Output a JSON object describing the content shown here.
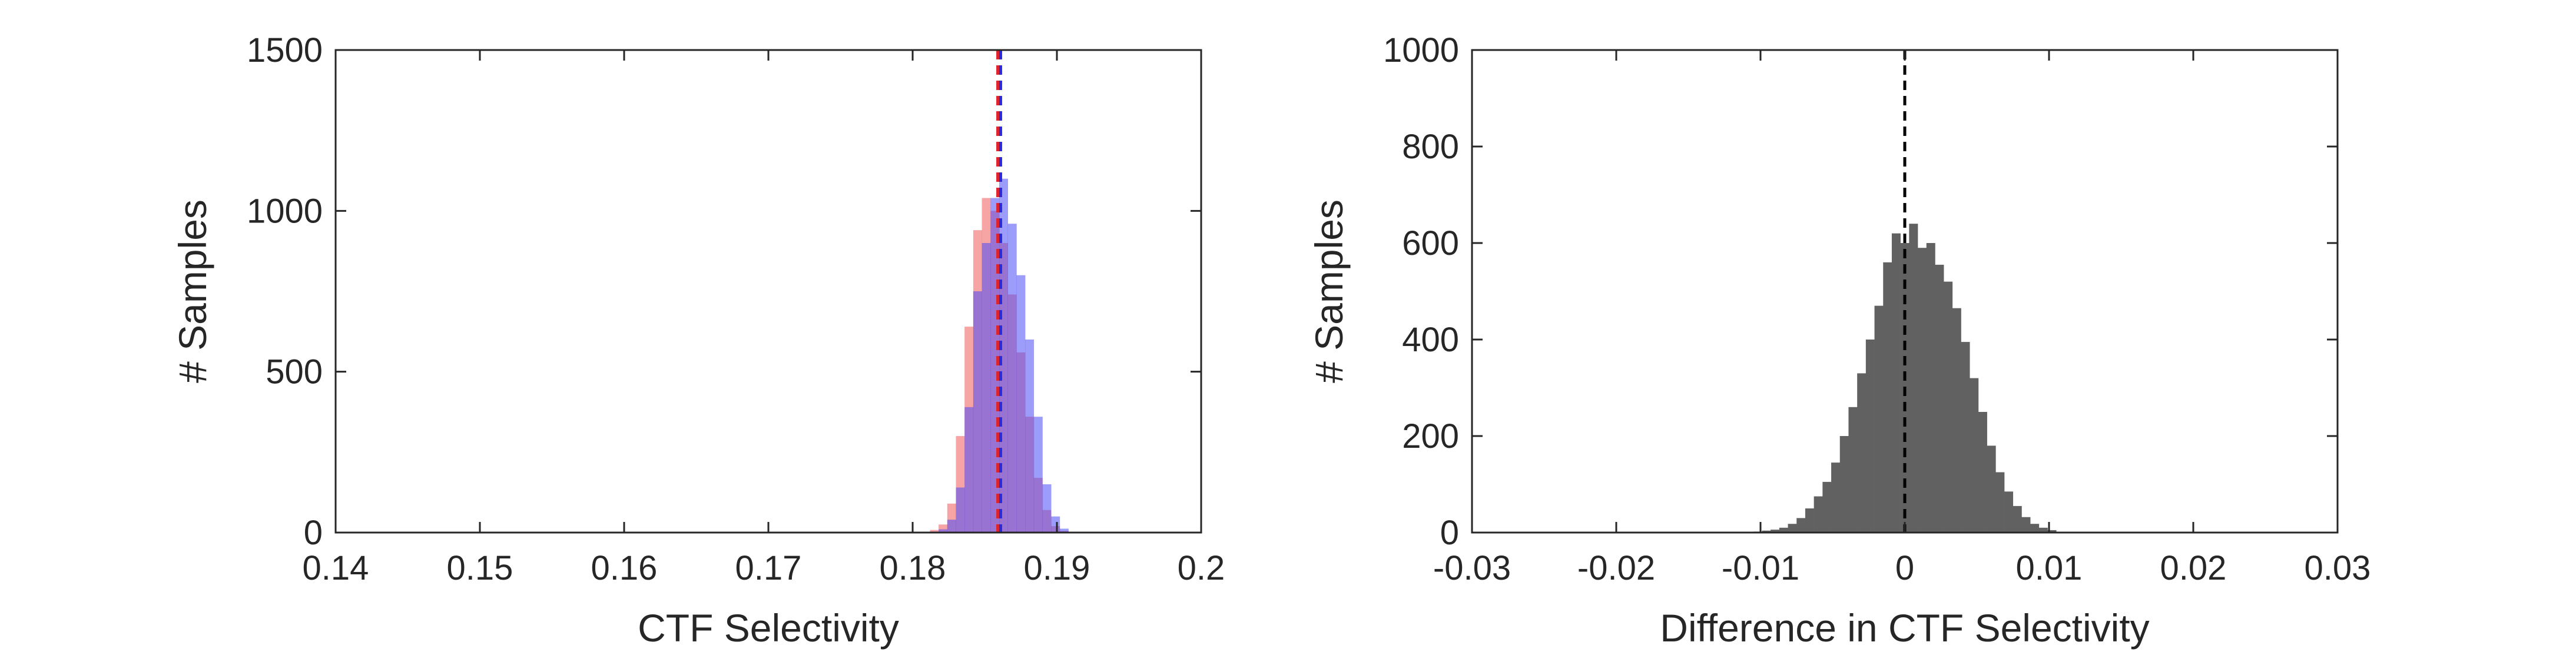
{
  "chart_data": [
    {
      "type": "histogram",
      "title": "",
      "xlabel": "CTF Selectivity",
      "ylabel": "# Samples",
      "xlim": [
        0.14,
        0.2
      ],
      "ylim": [
        0,
        1500
      ],
      "xticks": [
        "0.14",
        "0.15",
        "0.16",
        "0.17",
        "0.18",
        "0.19",
        "0.2"
      ],
      "yticks": [
        "0",
        "500",
        "1000",
        "1500"
      ],
      "grid": false,
      "bin_edges": [
        0.1812,
        0.1818,
        0.1824,
        0.183,
        0.1836,
        0.1842,
        0.1848,
        0.1854,
        0.186,
        0.1866,
        0.1872,
        0.1878,
        0.1884,
        0.189,
        0.1896,
        0.1902,
        0.1908
      ],
      "series": [
        {
          "color": "#ef5a5a",
          "opacity": 0.55,
          "counts": [
            8,
            25,
            90,
            300,
            640,
            940,
            1040,
            1000,
            900,
            740,
            560,
            360,
            170,
            70,
            20,
            5
          ]
        },
        {
          "color": "#4b4bf5",
          "opacity": 0.55,
          "counts": [
            3,
            10,
            40,
            140,
            390,
            750,
            900,
            1040,
            1100,
            960,
            800,
            600,
            360,
            150,
            50,
            12
          ]
        }
      ],
      "reference_lines": [
        {
          "x": 0.1859,
          "color": "#e0242a",
          "style": "dashed"
        },
        {
          "x": 0.1861,
          "color": "#2a2ad8",
          "style": "dashed"
        }
      ]
    },
    {
      "type": "histogram",
      "title": "",
      "xlabel": "Difference in CTF Selectivity",
      "ylabel": "# Samples",
      "xlim": [
        -0.03,
        0.03
      ],
      "ylim": [
        0,
        1000
      ],
      "xticks": [
        "-0.03",
        "-0.02",
        "-0.01",
        "0",
        "0.01",
        "0.02",
        "0.03"
      ],
      "yticks": [
        "0",
        "200",
        "400",
        "600",
        "800",
        "1000"
      ],
      "grid": false,
      "bin_edges": [
        -0.0105,
        -0.0099,
        -0.0093,
        -0.0087,
        -0.0081,
        -0.0075,
        -0.0069,
        -0.0063,
        -0.0057,
        -0.0051,
        -0.0045,
        -0.0039,
        -0.0033,
        -0.0027,
        -0.0021,
        -0.0015,
        -0.0009,
        -0.0003,
        0.0003,
        0.0009,
        0.0015,
        0.0021,
        0.0027,
        0.0033,
        0.0039,
        0.0045,
        0.0051,
        0.0057,
        0.0063,
        0.0069,
        0.0075,
        0.0081,
        0.0087,
        0.0093,
        0.0099,
        0.0105
      ],
      "series": [
        {
          "color": "#616161",
          "opacity": 1,
          "counts": [
            2,
            4,
            6,
            10,
            18,
            30,
            50,
            75,
            105,
            145,
            200,
            260,
            330,
            400,
            470,
            560,
            620,
            600,
            640,
            590,
            600,
            555,
            520,
            465,
            395,
            320,
            250,
            180,
            125,
            85,
            55,
            32,
            18,
            10,
            5
          ]
        }
      ],
      "reference_lines": [
        {
          "x": 0,
          "color": "#000000",
          "style": "dashed"
        }
      ]
    }
  ]
}
